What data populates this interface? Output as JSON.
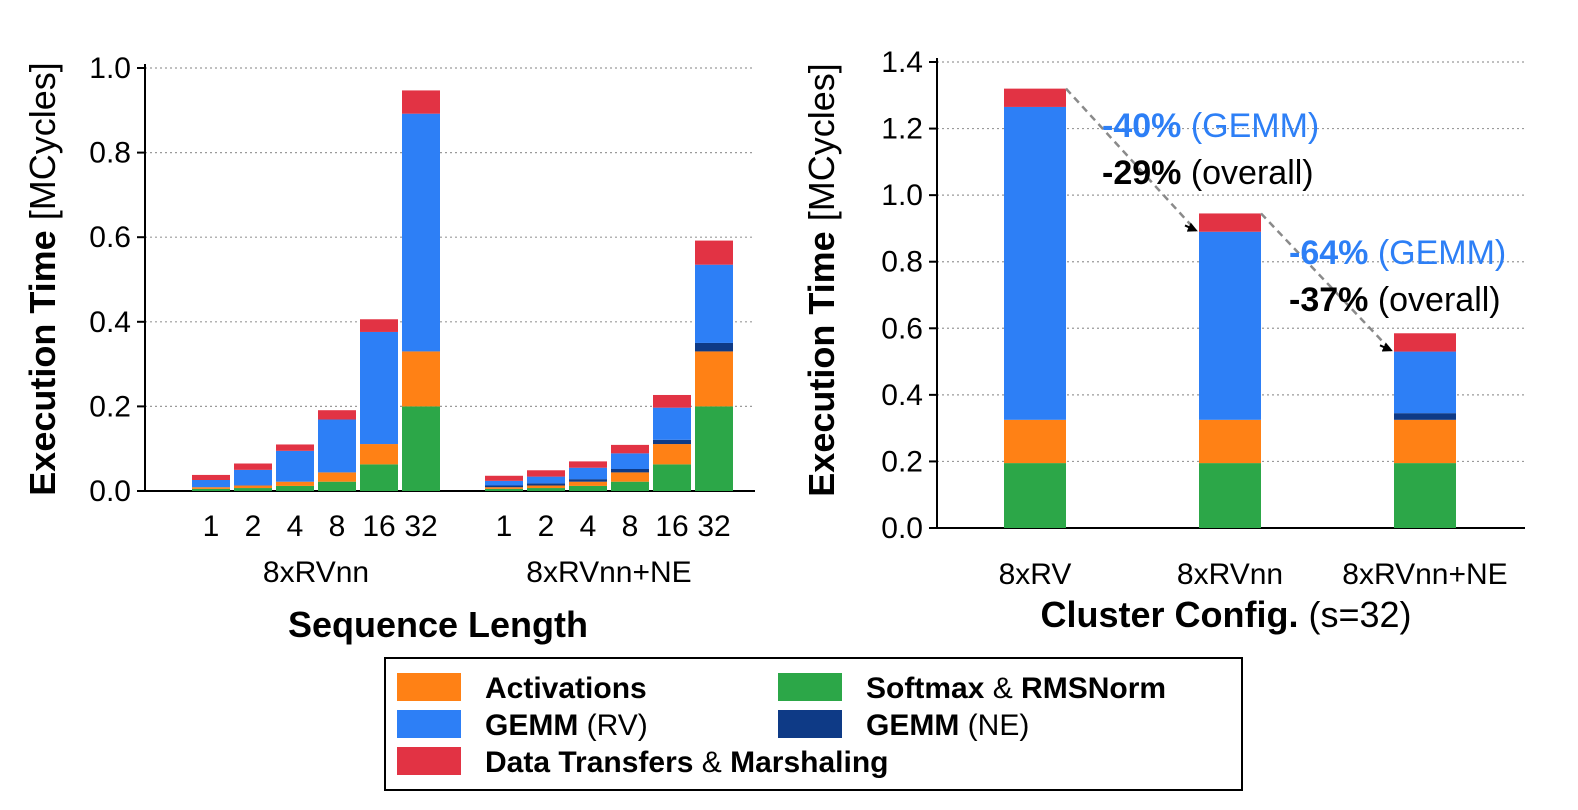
{
  "colors": {
    "softmax": "#2ca748",
    "activations": "#ff8115",
    "gemm_rv": "#2d7ff6",
    "gemm_ne": "#0e3a86",
    "data": "#e23344",
    "gemm_label": "#2d7ff6",
    "overall_label": "#000000"
  },
  "chart_data": [
    {
      "type": "bar",
      "stacked": true,
      "ylabel_bold": "Execution Time",
      "ylabel_unit": "[MCycles]",
      "xlabel": "Sequence Length",
      "ylim": [
        0,
        1.0
      ],
      "yticks": [
        "0.0",
        "0.2",
        "0.4",
        "0.6",
        "0.8",
        "1.0"
      ],
      "grid": true,
      "groups": [
        {
          "name": "8xRVnn",
          "categories": [
            "1",
            "2",
            "4",
            "8",
            "16",
            "32"
          ],
          "series": [
            {
              "key": "softmax",
              "values": [
                0.005,
                0.007,
                0.012,
                0.022,
                0.063,
                0.2
              ]
            },
            {
              "key": "activations",
              "values": [
                0.004,
                0.006,
                0.01,
                0.022,
                0.048,
                0.13
              ]
            },
            {
              "key": "gemm_rv",
              "values": [
                0.017,
                0.037,
                0.073,
                0.125,
                0.265,
                0.562
              ]
            },
            {
              "key": "gemm_ne",
              "values": [
                0,
                0,
                0,
                0,
                0,
                0
              ]
            },
            {
              "key": "data",
              "values": [
                0.012,
                0.015,
                0.015,
                0.022,
                0.03,
                0.055
              ]
            }
          ]
        },
        {
          "name": "8xRVnn+NE",
          "categories": [
            "1",
            "2",
            "4",
            "8",
            "16",
            "32"
          ],
          "series": [
            {
              "key": "softmax",
              "values": [
                0.005,
                0.007,
                0.012,
                0.022,
                0.063,
                0.2
              ]
            },
            {
              "key": "activations",
              "values": [
                0.004,
                0.006,
                0.01,
                0.022,
                0.048,
                0.13
              ]
            },
            {
              "key": "gemm_ne",
              "values": [
                0.004,
                0.005,
                0.006,
                0.008,
                0.01,
                0.02
              ]
            },
            {
              "key": "gemm_rv",
              "values": [
                0.011,
                0.016,
                0.027,
                0.037,
                0.076,
                0.185
              ]
            },
            {
              "key": "data",
              "values": [
                0.012,
                0.015,
                0.015,
                0.02,
                0.03,
                0.057
              ]
            }
          ]
        }
      ]
    },
    {
      "type": "bar",
      "stacked": true,
      "ylabel_bold": "Execution Time",
      "ylabel_unit": "[MCycles]",
      "xlabel_bold": "Cluster Config.",
      "xlabel_normal": "(s=32)",
      "ylim": [
        0,
        1.4
      ],
      "yticks": [
        "0.0",
        "0.2",
        "0.4",
        "0.6",
        "0.8",
        "1.0",
        "1.2",
        "1.4"
      ],
      "grid": true,
      "categories": [
        "8xRV",
        "8xRVnn",
        "8xRVnn+NE"
      ],
      "series": [
        {
          "key": "softmax",
          "values": [
            0.195,
            0.195,
            0.195
          ]
        },
        {
          "key": "activations",
          "values": [
            0.13,
            0.13,
            0.13
          ]
        },
        {
          "key": "gemm_ne",
          "values": [
            0,
            0,
            0.02
          ]
        },
        {
          "key": "gemm_rv",
          "values": [
            0.94,
            0.565,
            0.185
          ]
        },
        {
          "key": "data",
          "values": [
            0.055,
            0.055,
            0.055
          ]
        }
      ],
      "annotations": [
        {
          "gemm_value": "-40%",
          "gemm_text": "(GEMM)",
          "overall_value": "-29%",
          "overall_text": "(overall)"
        },
        {
          "gemm_value": "-64%",
          "gemm_text": "(GEMM)",
          "overall_value": "-37%",
          "overall_text": "(overall)"
        }
      ]
    }
  ],
  "legend": [
    {
      "key": "activations",
      "bold": "Activations",
      "normal": "",
      "bold2": ""
    },
    {
      "key": "softmax",
      "bold": "Softmax",
      "normal": " & ",
      "bold2": "RMSNorm"
    },
    {
      "key": "gemm_rv",
      "bold": "GEMM",
      "normal": " (RV)",
      "bold2": ""
    },
    {
      "key": "gemm_ne",
      "bold": "GEMM",
      "normal": " (NE)",
      "bold2": ""
    },
    {
      "key": "data",
      "bold": "Data Transfers",
      "normal": " & ",
      "bold2": "Marshaling"
    }
  ]
}
